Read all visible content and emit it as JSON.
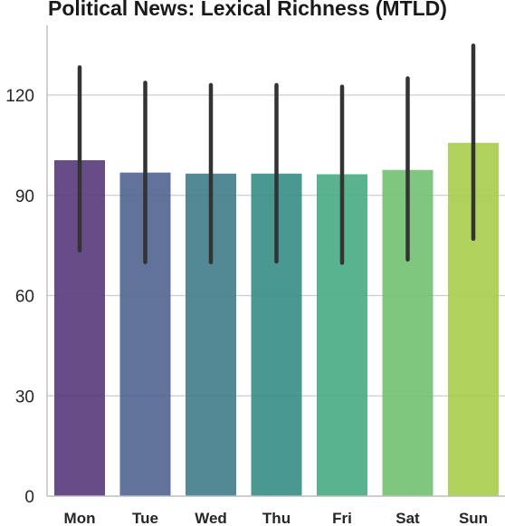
{
  "chart_data": {
    "type": "bar",
    "title": "Political News: Lexical Richness (MTLD)",
    "xlabel": "",
    "ylabel": "",
    "categories": [
      "Mon",
      "Tue",
      "Wed",
      "Thu",
      "Fri",
      "Sat",
      "Sun"
    ],
    "values": [
      100.5,
      96.8,
      96.5,
      96.5,
      96.3,
      97.6,
      105.7
    ],
    "error_low": [
      73.5,
      70.0,
      70.0,
      70.2,
      69.8,
      70.8,
      77.0
    ],
    "error_high": [
      128.3,
      123.7,
      123.0,
      123.0,
      122.5,
      125.0,
      134.8
    ],
    "ylim": [
      0,
      140
    ],
    "yticks": [
      0,
      30,
      60,
      90,
      120
    ],
    "grid": true,
    "colors": [
      "#5a3d7e",
      "#546692",
      "#437f8b",
      "#3a8f88",
      "#4aac84",
      "#74c274",
      "#a9cd4e"
    ],
    "error_color": "#333333"
  }
}
